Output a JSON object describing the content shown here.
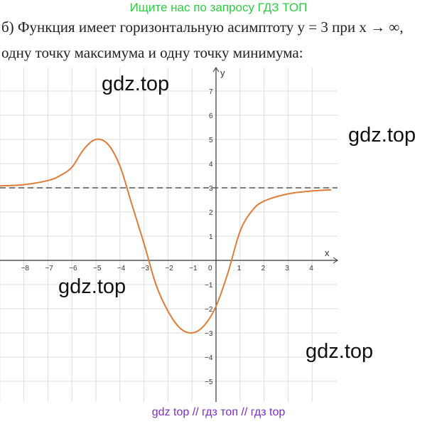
{
  "banner": "Ищите нас по запросу ГДЗ ТОП",
  "text": {
    "line1": "б) Функция имеет горизонтальную асимптоту y = 3 при x → ∞,",
    "line2": "одну точку максимума и одну точку минимума:"
  },
  "watermarks": [
    "gdz.top",
    "gdz.top",
    "gdz.top",
    "gdz.top"
  ],
  "footer": "gdz top  //  гдз топ  //  гдз top",
  "chart_data": {
    "type": "line",
    "xlabel": "x",
    "ylabel": "y",
    "xlim": [
      -9,
      4.8
    ],
    "ylim": [
      -5.8,
      7.8
    ],
    "x_ticks": [
      -8,
      -7,
      -6,
      -5,
      -4,
      -3,
      -2,
      -1,
      0,
      1,
      2,
      3,
      4
    ],
    "y_ticks": [
      -5,
      -4,
      -3,
      -2,
      -1,
      1,
      2,
      3,
      4,
      5,
      6,
      7
    ],
    "grid": true,
    "asymptote": {
      "y": 3,
      "style": "dashed",
      "color": "#555555"
    },
    "series": [
      {
        "color": "#e07b39",
        "points": [
          [
            -9,
            3.08
          ],
          [
            -8,
            3.13
          ],
          [
            -7,
            3.3
          ],
          [
            -6.5,
            3.5
          ],
          [
            -6,
            3.85
          ],
          [
            -5.5,
            4.6
          ],
          [
            -5,
            5
          ],
          [
            -4.5,
            4.8
          ],
          [
            -4,
            3.9
          ],
          [
            -3.5,
            2.3
          ],
          [
            -3,
            0.7
          ],
          [
            -2.5,
            -1
          ],
          [
            -2,
            -2.1
          ],
          [
            -1.5,
            -2.8
          ],
          [
            -1,
            -3
          ],
          [
            -0.5,
            -2.7
          ],
          [
            0,
            -1.9
          ],
          [
            0.5,
            -0.5
          ],
          [
            1,
            1.2
          ],
          [
            1.5,
            2.05
          ],
          [
            2,
            2.45
          ],
          [
            3,
            2.75
          ],
          [
            4,
            2.87
          ],
          [
            4.8,
            2.92
          ]
        ]
      }
    ]
  }
}
